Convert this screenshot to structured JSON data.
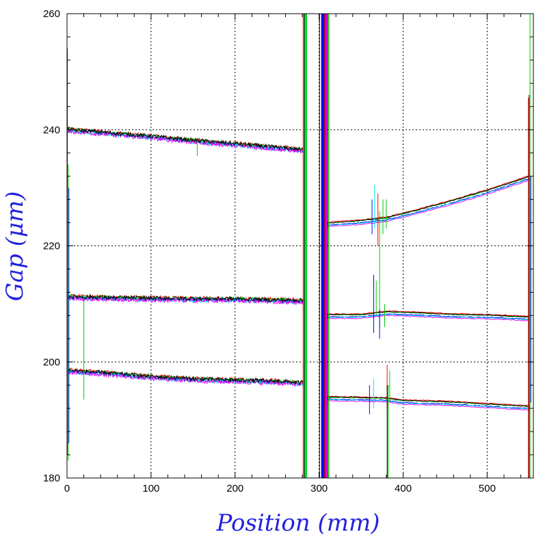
{
  "chart_data": {
    "type": "line",
    "xlabel": "Position (mm)",
    "ylabel": "Gap (μm)",
    "xlim": [
      0,
      555
    ],
    "ylim": [
      180,
      260
    ],
    "xticks": [
      0,
      100,
      200,
      300,
      400,
      500
    ],
    "yticks": [
      180,
      200,
      220,
      240,
      260
    ],
    "grid": true,
    "series_colors": [
      "#ff0000",
      "#00cc00",
      "#0000ff",
      "#00eeee",
      "#ff00ff",
      "#000000"
    ],
    "bands": [
      {
        "name_hint": "upper",
        "left": {
          "x": [
            0,
            50,
            100,
            150,
            200,
            250,
            282
          ],
          "y": [
            240.0,
            239.4,
            238.8,
            238.1,
            237.5,
            236.9,
            236.5
          ]
        },
        "right": {
          "x": [
            310,
            350,
            380,
            400,
            450,
            500,
            550
          ],
          "y": [
            223.8,
            224.2,
            224.7,
            225.4,
            227.3,
            229.4,
            231.8
          ]
        }
      },
      {
        "name_hint": "middle",
        "left": {
          "x": [
            0,
            50,
            100,
            150,
            200,
            250,
            282
          ],
          "y": [
            211.2,
            211.0,
            210.9,
            210.8,
            210.8,
            210.6,
            210.5
          ]
        },
        "right": {
          "x": [
            310,
            350,
            380,
            400,
            450,
            500,
            550
          ],
          "y": [
            208.0,
            208.0,
            208.5,
            208.4,
            208.1,
            207.9,
            207.6
          ]
        }
      },
      {
        "name_hint": "lower",
        "left": {
          "x": [
            0,
            50,
            100,
            150,
            200,
            250,
            282
          ],
          "y": [
            198.5,
            198.0,
            197.4,
            197.0,
            196.8,
            196.6,
            196.3
          ]
        },
        "right": {
          "x": [
            310,
            350,
            380,
            400,
            450,
            500,
            550
          ],
          "y": [
            193.8,
            193.7,
            193.6,
            193.2,
            193.0,
            192.6,
            192.2
          ]
        }
      }
    ]
  }
}
